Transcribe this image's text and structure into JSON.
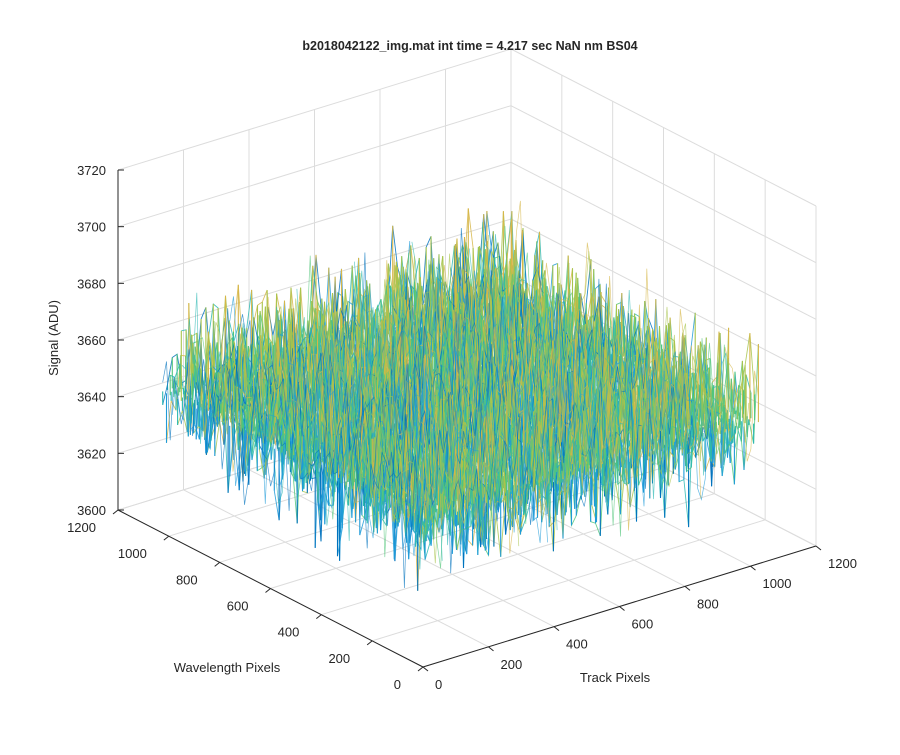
{
  "chart_data": {
    "type": "surface",
    "title": "b2018042122_img.mat int time = 4.217 sec  NaN nm BS04",
    "xlabel": "Track Pixels",
    "ylabel": "Wavelength Pixels",
    "zlabel": "Signal (ADU)",
    "xlim": [
      0,
      1200
    ],
    "ylim": [
      0,
      1200
    ],
    "zlim": [
      3600,
      3720
    ],
    "xticks": [
      "0",
      "200",
      "400",
      "600",
      "800",
      "1000",
      "1200"
    ],
    "yticks": [
      "0",
      "200",
      "400",
      "600",
      "800",
      "1000",
      "1200"
    ],
    "zticks": [
      "3600",
      "3620",
      "3640",
      "3660",
      "3680",
      "3700",
      "3720"
    ],
    "x_range": [
      0,
      1024
    ],
    "y_range": [
      0,
      1024
    ],
    "signal_mean": 3650,
    "signal_noise_range": [
      3615,
      3690
    ],
    "grid": true,
    "colormap": [
      "#0072bd",
      "#1f9bd8",
      "#2cb8b3",
      "#52c67a",
      "#a8c44c",
      "#d6b648"
    ]
  }
}
